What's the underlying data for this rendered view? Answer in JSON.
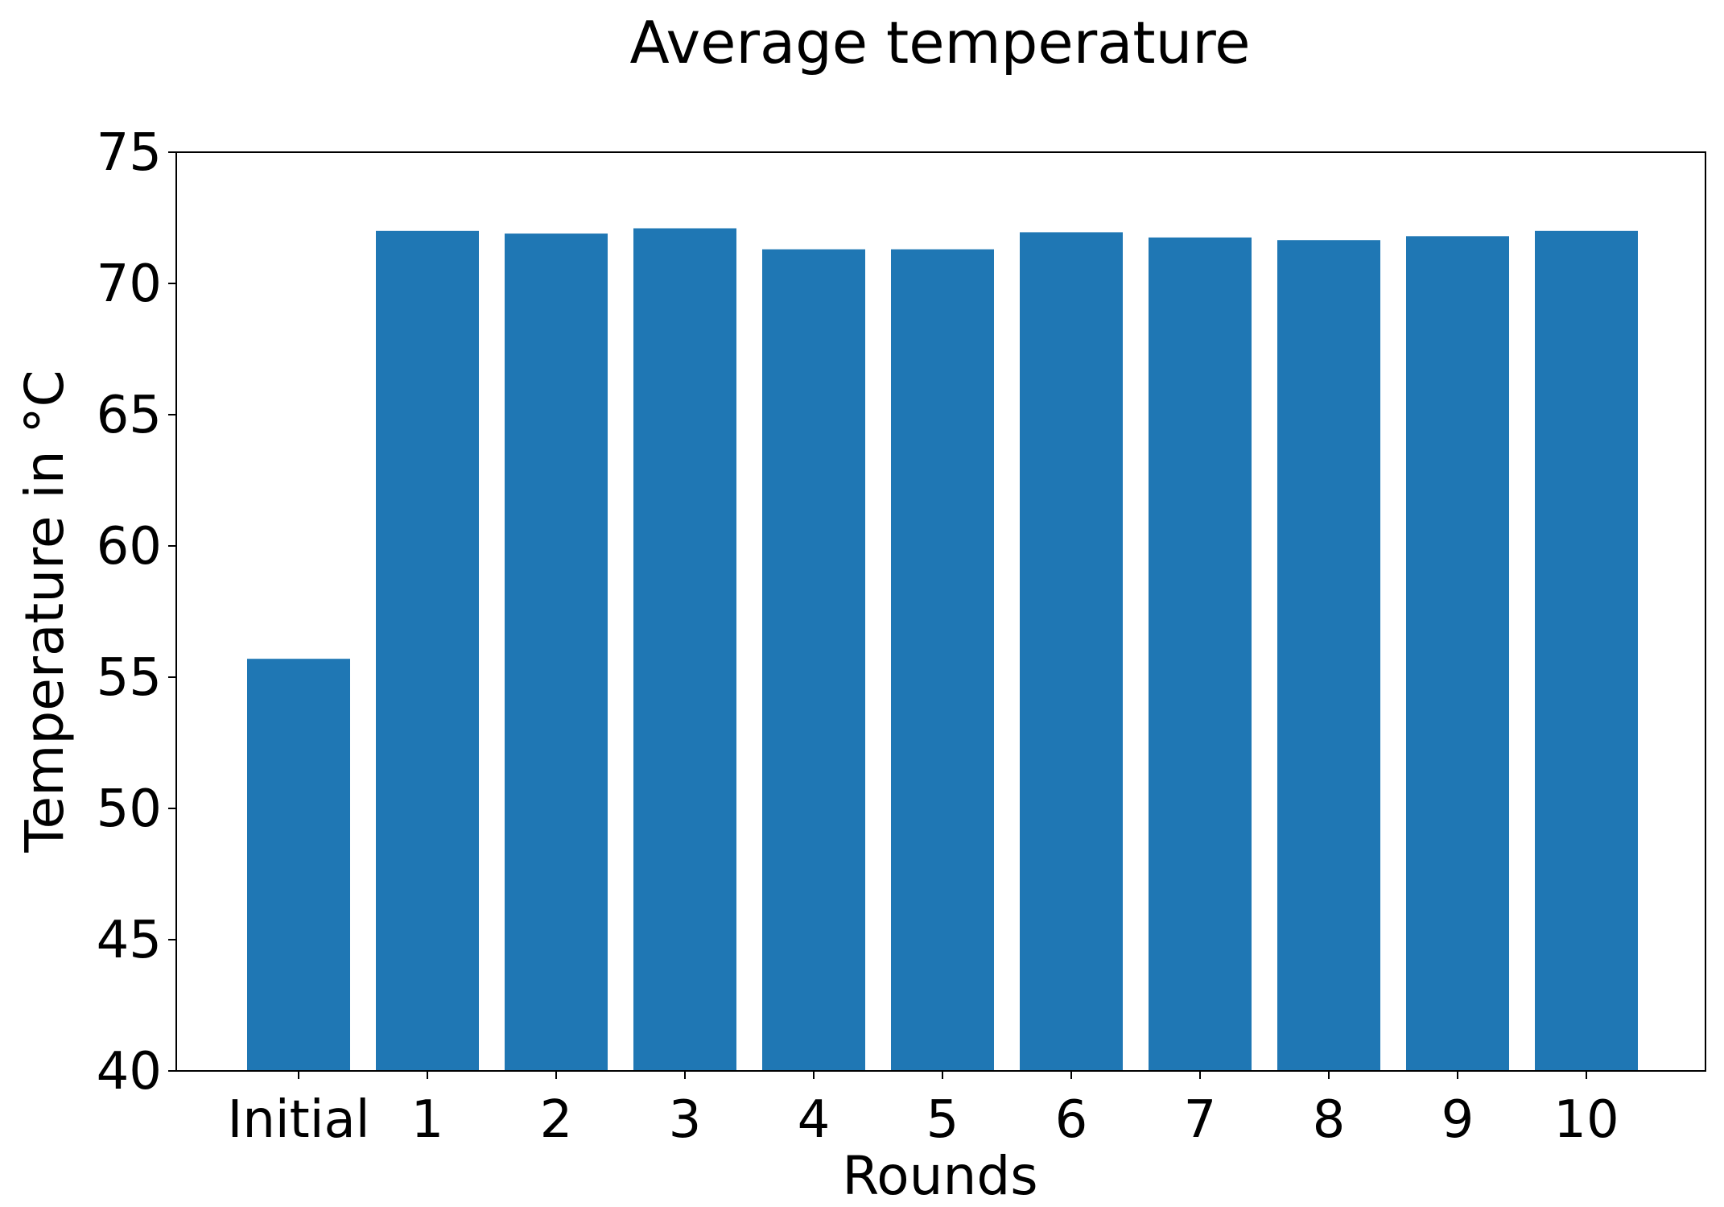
{
  "chart_data": {
    "type": "bar",
    "title": "Average temperature",
    "xlabel": "Rounds",
    "ylabel": "Temperature in °C",
    "categories": [
      "Initial",
      "1",
      "2",
      "3",
      "4",
      "5",
      "6",
      "7",
      "8",
      "9",
      "10"
    ],
    "values": [
      55.7,
      72.0,
      71.9,
      72.1,
      71.3,
      71.3,
      71.95,
      71.75,
      71.65,
      71.8,
      72.0
    ],
    "ylim": [
      40,
      75
    ],
    "yticks": [
      "40",
      "45",
      "50",
      "55",
      "60",
      "65",
      "70",
      "75"
    ],
    "grid": false,
    "bar_color": "#1f77b4"
  }
}
